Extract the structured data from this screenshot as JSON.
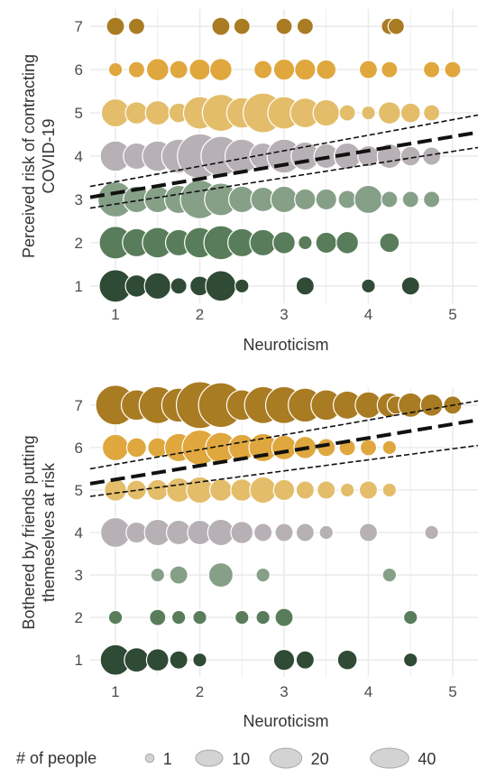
{
  "colors": {
    "level_1": "#2f4a35",
    "level_2": "#597d5a",
    "level_3": "#86a088",
    "level_4": "#b7b0b5",
    "level_5": "#e3bd6a",
    "level_6": "#dfa73d",
    "level_7": "#a97b22",
    "grid": "#ebebeb",
    "line": "#111111",
    "legend_fill": "#d3d3d3"
  },
  "legend": {
    "title": "# of people",
    "entries": [
      {
        "label": "1",
        "count": 1
      },
      {
        "label": "10",
        "count": 10
      },
      {
        "label": "20",
        "count": 20
      },
      {
        "label": "40",
        "count": 40
      }
    ]
  },
  "chart_data": [
    {
      "type": "scatter",
      "xlabel": "Neuroticism",
      "ylabel_lines": [
        "Perceived risk of contracting",
        "COVID-19"
      ],
      "xlim": [
        0.7,
        5.3
      ],
      "ylim": [
        0.6,
        7.4
      ],
      "xticks": [
        1,
        2,
        3,
        4,
        5
      ],
      "yticks": [
        1,
        2,
        3,
        4,
        5,
        6,
        7
      ],
      "fit": {
        "x": [
          0.7,
          5.3
        ],
        "y": [
          3.05,
          4.55
        ],
        "ci_lower": [
          2.8,
          4.2
        ],
        "ci_upper": [
          3.3,
          4.95
        ]
      },
      "points": [
        {
          "y": 7,
          "pts": [
            [
              1.0,
              3
            ],
            [
              1.25,
              2
            ],
            [
              2.25,
              3
            ],
            [
              2.5,
              2
            ],
            [
              3.0,
              2
            ],
            [
              3.25,
              2
            ],
            [
              4.25,
              2
            ],
            [
              4.33,
              2
            ]
          ]
        },
        {
          "y": 6,
          "pts": [
            [
              1.0,
              1
            ],
            [
              1.25,
              2
            ],
            [
              1.5,
              6
            ],
            [
              1.75,
              3
            ],
            [
              2.0,
              5
            ],
            [
              2.25,
              6
            ],
            [
              2.75,
              3
            ],
            [
              3.0,
              5
            ],
            [
              3.25,
              5
            ],
            [
              3.5,
              4
            ],
            [
              4.0,
              3
            ],
            [
              4.25,
              2
            ],
            [
              4.75,
              2
            ],
            [
              5.0,
              2
            ]
          ]
        },
        {
          "y": 5,
          "pts": [
            [
              1.0,
              12
            ],
            [
              1.25,
              6
            ],
            [
              1.5,
              8
            ],
            [
              1.75,
              4
            ],
            [
              2.0,
              18
            ],
            [
              2.25,
              25
            ],
            [
              2.5,
              15
            ],
            [
              2.75,
              30
            ],
            [
              3.0,
              18
            ],
            [
              3.25,
              14
            ],
            [
              3.5,
              10
            ],
            [
              3.75,
              2
            ],
            [
              4.0,
              1
            ],
            [
              4.25,
              6
            ],
            [
              4.5,
              4
            ],
            [
              4.75,
              2
            ]
          ]
        },
        {
          "y": 4,
          "pts": [
            [
              1.0,
              15
            ],
            [
              1.25,
              10
            ],
            [
              1.5,
              15
            ],
            [
              1.75,
              20
            ],
            [
              2.0,
              40
            ],
            [
              2.25,
              30
            ],
            [
              2.5,
              20
            ],
            [
              2.75,
              10
            ],
            [
              3.0,
              20
            ],
            [
              3.25,
              12
            ],
            [
              3.5,
              8
            ],
            [
              3.75,
              10
            ],
            [
              4.0,
              5
            ],
            [
              4.25,
              8
            ],
            [
              4.5,
              4
            ],
            [
              4.75,
              3
            ]
          ]
        },
        {
          "y": 3,
          "pts": [
            [
              1.0,
              22
            ],
            [
              1.25,
              10
            ],
            [
              1.5,
              10
            ],
            [
              1.75,
              12
            ],
            [
              2.0,
              28
            ],
            [
              2.25,
              18
            ],
            [
              2.5,
              10
            ],
            [
              2.75,
              8
            ],
            [
              3.0,
              10
            ],
            [
              3.25,
              5
            ],
            [
              3.5,
              5
            ],
            [
              3.75,
              3
            ],
            [
              4.0,
              12
            ],
            [
              4.25,
              2
            ],
            [
              4.5,
              2
            ],
            [
              4.75,
              2
            ]
          ]
        },
        {
          "y": 2,
          "pts": [
            [
              1.0,
              18
            ],
            [
              1.25,
              12
            ],
            [
              1.5,
              15
            ],
            [
              1.75,
              10
            ],
            [
              2.0,
              15
            ],
            [
              2.25,
              20
            ],
            [
              2.5,
              12
            ],
            [
              2.75,
              10
            ],
            [
              3.0,
              6
            ],
            [
              3.25,
              1
            ],
            [
              3.5,
              5
            ],
            [
              3.75,
              6
            ],
            [
              4.25,
              4
            ]
          ]
        },
        {
          "y": 1,
          "pts": [
            [
              1.0,
              18
            ],
            [
              1.25,
              6
            ],
            [
              1.5,
              10
            ],
            [
              1.75,
              2
            ],
            [
              2.0,
              4
            ],
            [
              2.25,
              15
            ],
            [
              2.5,
              1
            ],
            [
              3.25,
              3
            ],
            [
              4.0,
              1
            ],
            [
              4.5,
              3
            ]
          ]
        }
      ]
    },
    {
      "type": "scatter",
      "xlabel": "Neuroticism",
      "ylabel_lines": [
        "Bothered by friends putting",
        "themeselves at risk"
      ],
      "xlim": [
        0.7,
        5.3
      ],
      "ylim": [
        0.6,
        7.4
      ],
      "xticks": [
        1,
        2,
        3,
        4,
        5
      ],
      "yticks": [
        1,
        2,
        3,
        4,
        5,
        6,
        7
      ],
      "fit": {
        "x": [
          0.7,
          5.3
        ],
        "y": [
          5.15,
          6.65
        ],
        "ci_lower": [
          4.85,
          6.05
        ],
        "ci_upper": [
          5.5,
          7.1
        ]
      },
      "points": [
        {
          "y": 7,
          "pts": [
            [
              1.0,
              30
            ],
            [
              1.25,
              15
            ],
            [
              1.5,
              25
            ],
            [
              1.75,
              20
            ],
            [
              2.0,
              45
            ],
            [
              2.25,
              40
            ],
            [
              2.5,
              15
            ],
            [
              2.75,
              25
            ],
            [
              3.0,
              25
            ],
            [
              3.25,
              20
            ],
            [
              3.5,
              15
            ],
            [
              3.75,
              12
            ],
            [
              4.0,
              10
            ],
            [
              4.25,
              8
            ],
            [
              4.33,
              3
            ],
            [
              4.5,
              8
            ],
            [
              4.75,
              6
            ],
            [
              5.0,
              3
            ]
          ]
        },
        {
          "y": 6,
          "pts": [
            [
              1.0,
              10
            ],
            [
              1.25,
              4
            ],
            [
              1.5,
              4
            ],
            [
              1.75,
              12
            ],
            [
              2.0,
              22
            ],
            [
              2.25,
              15
            ],
            [
              2.5,
              10
            ],
            [
              2.75,
              12
            ],
            [
              3.0,
              8
            ],
            [
              3.25,
              6
            ],
            [
              3.5,
              3
            ],
            [
              3.75,
              2
            ],
            [
              4.0,
              2
            ],
            [
              4.25,
              1
            ]
          ]
        },
        {
          "y": 5,
          "pts": [
            [
              1.0,
              6
            ],
            [
              1.25,
              4
            ],
            [
              1.5,
              5
            ],
            [
              1.75,
              8
            ],
            [
              2.0,
              10
            ],
            [
              2.25,
              6
            ],
            [
              2.5,
              6
            ],
            [
              2.75,
              10
            ],
            [
              3.0,
              5
            ],
            [
              3.25,
              3
            ],
            [
              3.5,
              3
            ],
            [
              3.75,
              1
            ],
            [
              4.0,
              3
            ],
            [
              4.25,
              1
            ]
          ]
        },
        {
          "y": 4,
          "pts": [
            [
              1.0,
              14
            ],
            [
              1.25,
              5
            ],
            [
              1.5,
              10
            ],
            [
              1.75,
              8
            ],
            [
              2.0,
              8
            ],
            [
              2.25,
              10
            ],
            [
              2.5,
              6
            ],
            [
              2.75,
              3
            ],
            [
              3.0,
              3
            ],
            [
              3.25,
              3
            ],
            [
              3.5,
              1
            ],
            [
              4.0,
              3
            ],
            [
              4.75,
              1
            ]
          ]
        },
        {
          "y": 3,
          "pts": [
            [
              1.5,
              1
            ],
            [
              1.75,
              3
            ],
            [
              2.25,
              8
            ],
            [
              2.75,
              1
            ],
            [
              4.25,
              1
            ]
          ]
        },
        {
          "y": 2,
          "pts": [
            [
              1.0,
              1
            ],
            [
              1.5,
              2
            ],
            [
              1.75,
              1
            ],
            [
              2.0,
              1
            ],
            [
              2.5,
              1
            ],
            [
              2.75,
              1
            ],
            [
              3.0,
              3
            ],
            [
              4.5,
              1
            ]
          ]
        },
        {
          "y": 1,
          "pts": [
            [
              1.0,
              15
            ],
            [
              1.25,
              8
            ],
            [
              1.5,
              6
            ],
            [
              1.75,
              3
            ],
            [
              2.0,
              1
            ],
            [
              3.0,
              5
            ],
            [
              3.25,
              3
            ],
            [
              3.75,
              4
            ],
            [
              4.5,
              1
            ]
          ]
        }
      ]
    }
  ]
}
